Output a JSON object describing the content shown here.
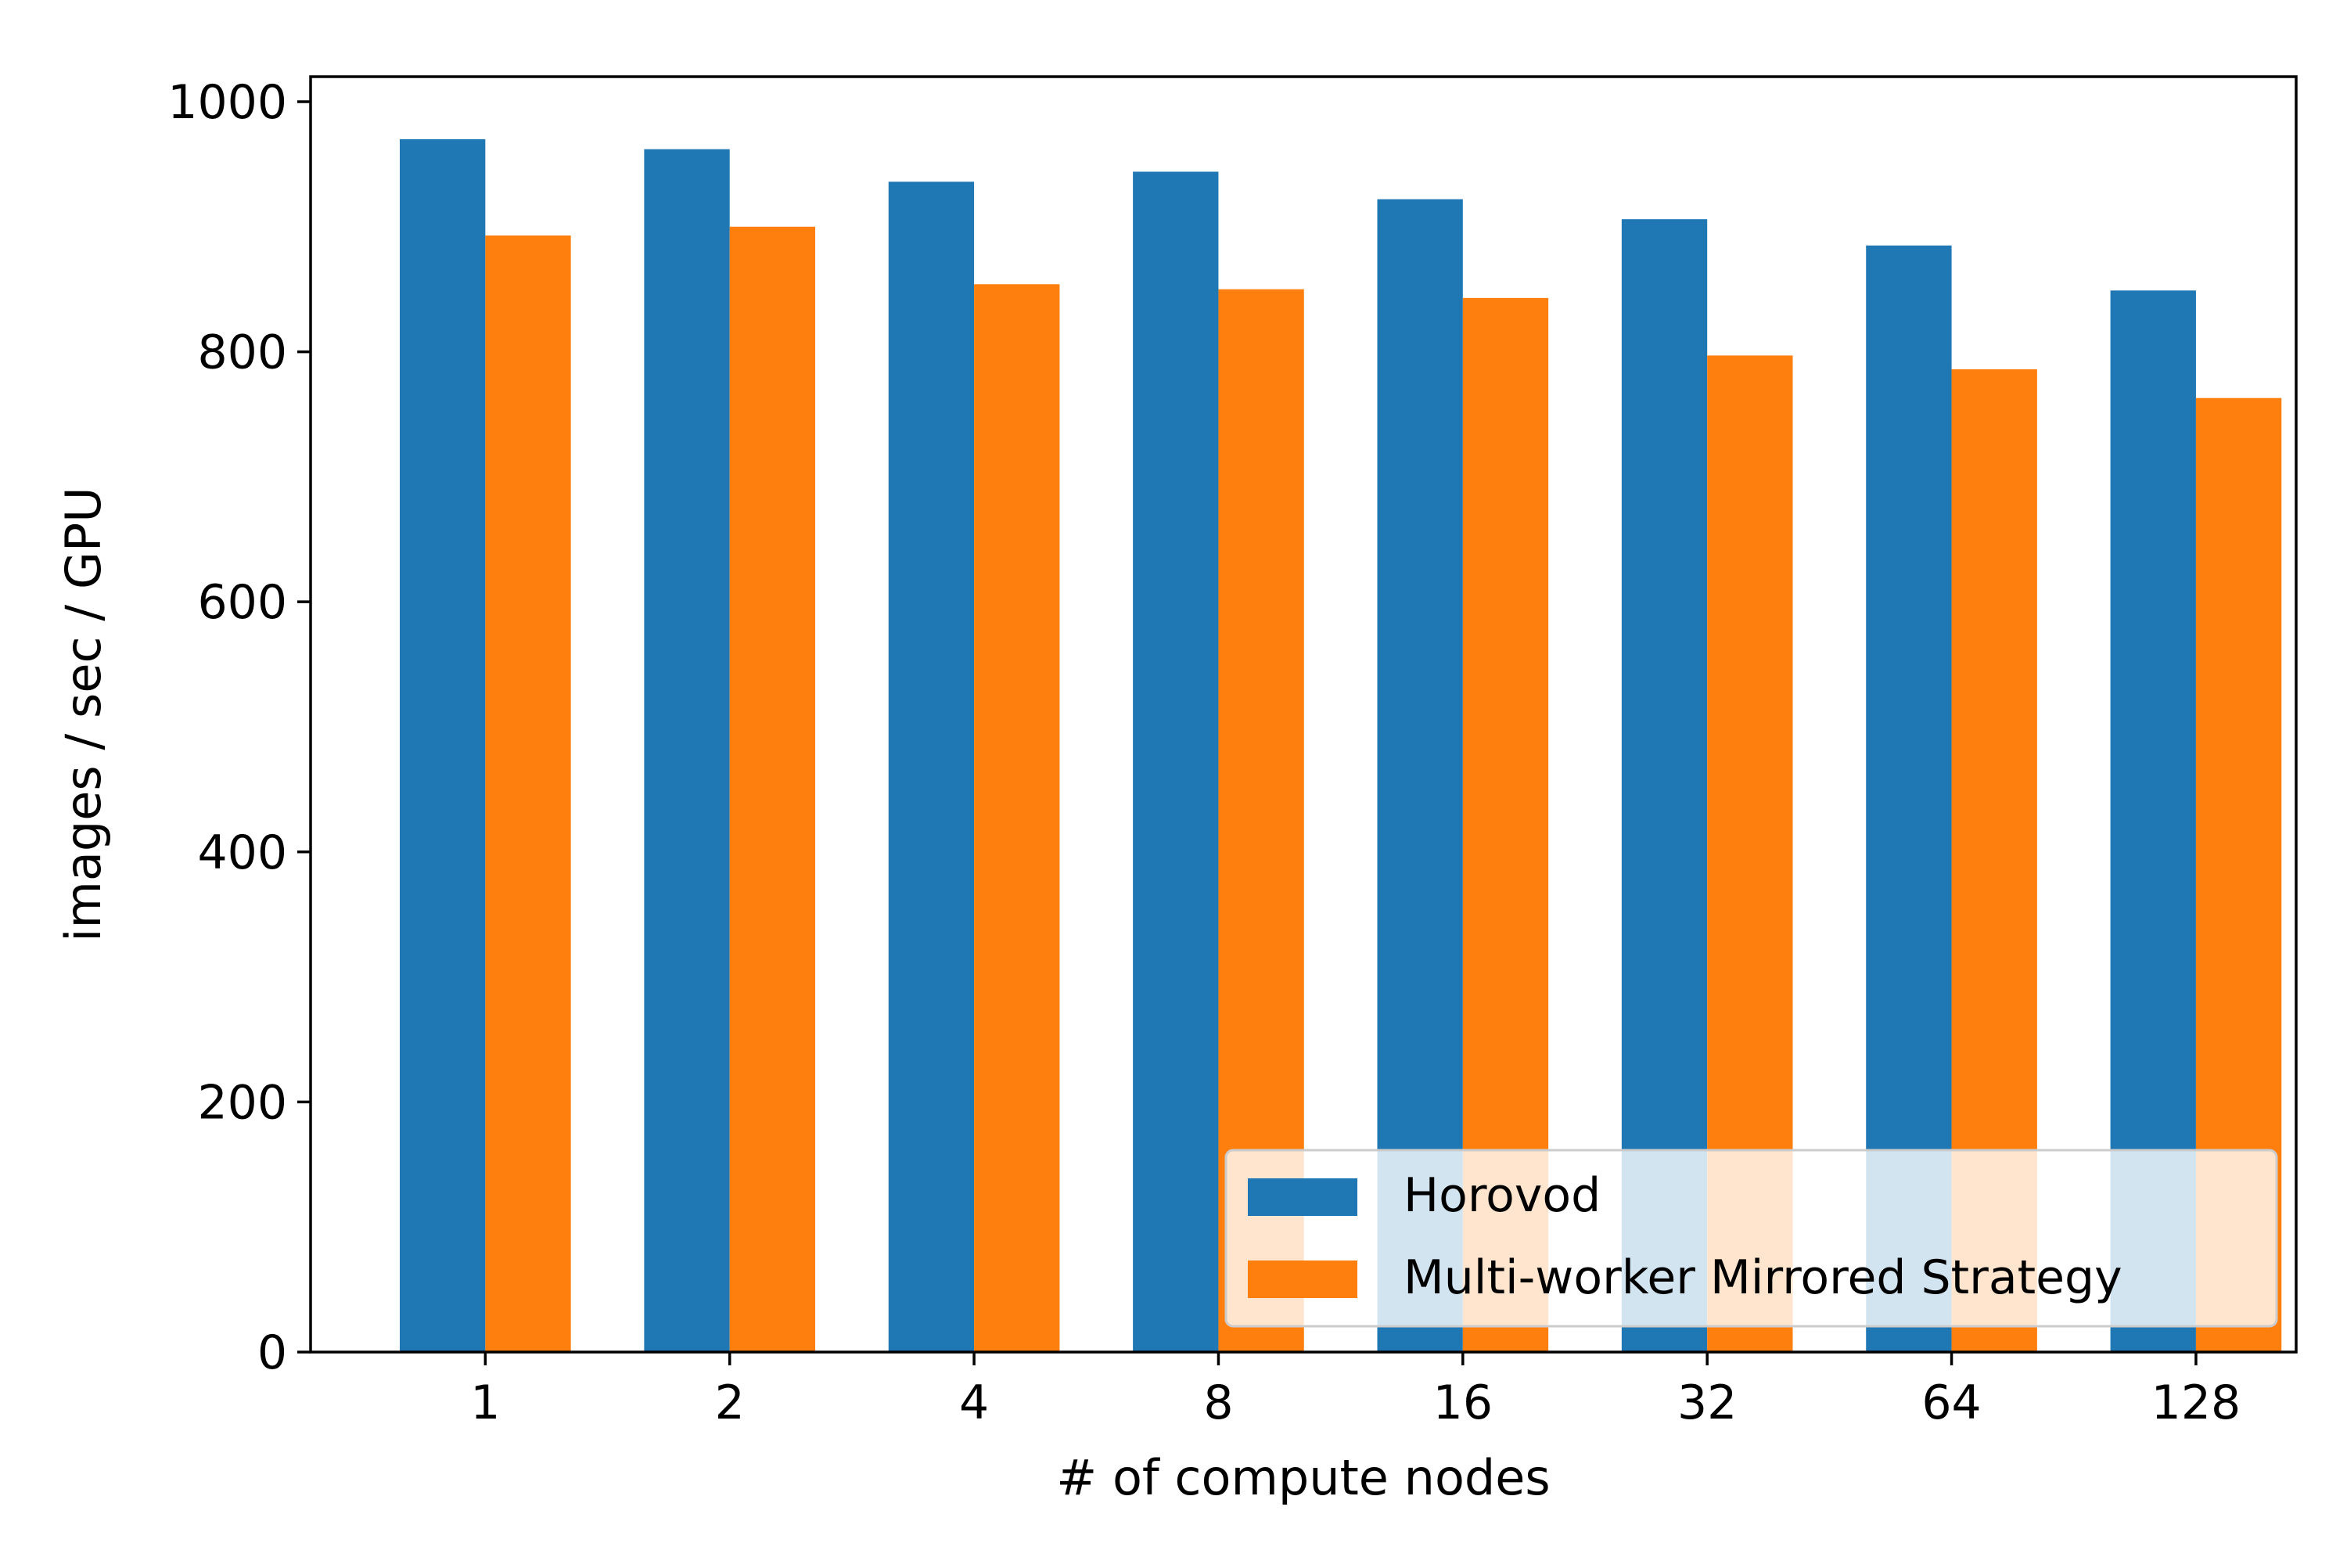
{
  "chart_data": {
    "type": "bar",
    "title": "",
    "xlabel": "# of compute nodes",
    "ylabel": "images / sec / GPU",
    "categories": [
      "1",
      "2",
      "4",
      "8",
      "16",
      "32",
      "64",
      "128"
    ],
    "series": [
      {
        "name": "Horovod",
        "color": "#1f77b4",
        "values": [
          970,
          962,
          936,
          944,
          922,
          906,
          885,
          849
        ]
      },
      {
        "name": "Multi-worker Mirrored Strategy",
        "color": "#ff7f0e",
        "values": [
          893,
          900,
          854,
          850,
          843,
          797,
          786,
          763
        ]
      }
    ],
    "ylim": [
      0,
      1020
    ],
    "yticks": [
      0,
      200,
      400,
      600,
      800,
      1000
    ],
    "grid": false,
    "legend_position": "bottom-right"
  }
}
